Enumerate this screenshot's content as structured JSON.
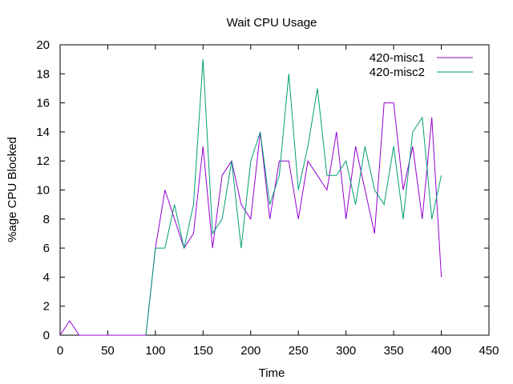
{
  "chart_data": {
    "type": "line",
    "title": "Wait CPU Usage",
    "xlabel": "Time",
    "ylabel": "%age CPU Blocked",
    "xlim": [
      0,
      450
    ],
    "ylim": [
      0,
      20
    ],
    "xticks": [
      0,
      50,
      100,
      150,
      200,
      250,
      300,
      350,
      400,
      450
    ],
    "yticks": [
      0,
      2,
      4,
      6,
      8,
      10,
      12,
      14,
      16,
      18,
      20
    ],
    "grid": false,
    "legend_position": "top-right",
    "series": [
      {
        "name": "420-misc1",
        "color": "#9400d3",
        "x": [
          0,
          10,
          20,
          30,
          40,
          50,
          60,
          70,
          80,
          90,
          100,
          110,
          120,
          130,
          140,
          150,
          160,
          170,
          180,
          190,
          200,
          210,
          220,
          230,
          240,
          250,
          260,
          270,
          280,
          290,
          300,
          310,
          320,
          330,
          340,
          350,
          360,
          370,
          380,
          390,
          400
        ],
        "y": [
          0,
          1,
          0,
          0,
          0,
          0,
          0,
          0,
          0,
          0,
          6,
          10,
          8,
          6,
          7,
          13,
          6,
          11,
          12,
          9,
          8,
          14,
          8,
          12,
          12,
          8,
          12,
          11,
          10,
          14,
          8,
          13,
          10,
          7,
          16,
          16,
          10,
          13,
          8,
          15,
          4
        ]
      },
      {
        "name": "420-misc2",
        "color": "#009e73",
        "x": [
          90,
          100,
          110,
          120,
          130,
          140,
          150,
          160,
          170,
          180,
          190,
          200,
          210,
          220,
          230,
          240,
          250,
          260,
          270,
          280,
          290,
          300,
          310,
          320,
          330,
          340,
          350,
          360,
          370,
          380,
          390,
          400
        ],
        "y": [
          0,
          6,
          6,
          9,
          6,
          9,
          19,
          7,
          8,
          12,
          6,
          12,
          14,
          9,
          11,
          18,
          10,
          13,
          17,
          11,
          11,
          12,
          9,
          13,
          10,
          9,
          13,
          8,
          14,
          15,
          8,
          11
        ]
      }
    ]
  }
}
